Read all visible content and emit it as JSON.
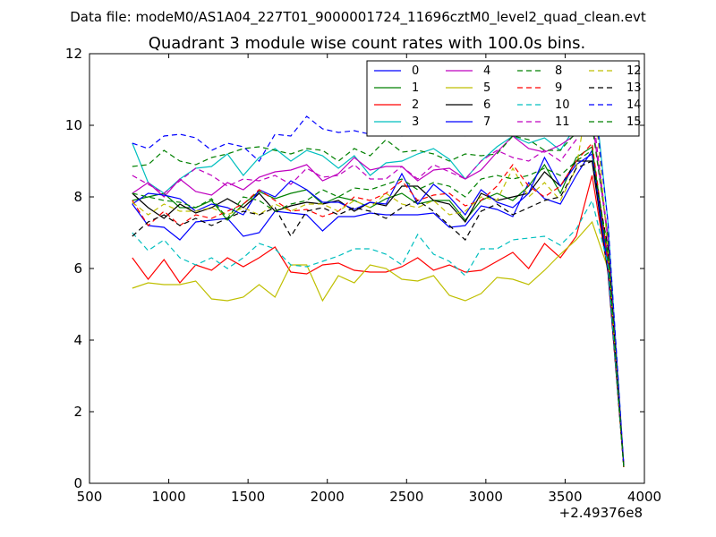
{
  "supertitle": "Data file: modeM0/AS1A04_227T01_9000001724_11696cztM0_level2_quad_clean.evt",
  "chart_data": {
    "type": "line",
    "title": "Quadrant 3 module wise count rates with 100.0s bins.",
    "xlabel": "",
    "ylabel": "",
    "xlim": [
      500,
      4000
    ],
    "ylim": [
      0,
      12
    ],
    "x_offset_label": "+2.49376e8",
    "xticks": [
      500,
      1000,
      1500,
      2000,
      2500,
      3000,
      3500,
      4000
    ],
    "yticks": [
      0,
      2,
      4,
      6,
      8,
      10,
      12
    ],
    "grid": false,
    "legend_position": "top-right",
    "x": [
      770,
      870,
      970,
      1070,
      1170,
      1270,
      1370,
      1470,
      1570,
      1670,
      1770,
      1870,
      1970,
      2070,
      2170,
      2270,
      2370,
      2470,
      2570,
      2670,
      2770,
      2870,
      2970,
      3070,
      3170,
      3270,
      3370,
      3470,
      3570,
      3670,
      3770,
      3870
    ],
    "series": [
      {
        "name": "0",
        "color": "#0000ff",
        "dash": "solid",
        "values": [
          7.8,
          7.2,
          7.15,
          6.8,
          7.3,
          7.35,
          7.4,
          6.9,
          7.0,
          7.6,
          7.55,
          7.5,
          7.05,
          7.45,
          7.45,
          7.55,
          7.5,
          7.5,
          7.5,
          7.55,
          7.15,
          7.2,
          7.75,
          7.65,
          7.45,
          8.4,
          7.95,
          7.8,
          8.6,
          9.3,
          6.3,
          0.5
        ]
      },
      {
        "name": "1",
        "color": "#008000",
        "dash": "solid",
        "values": [
          7.9,
          8.0,
          8.1,
          7.7,
          7.7,
          7.9,
          7.35,
          7.8,
          8.15,
          7.95,
          8.1,
          8.2,
          7.8,
          8.0,
          7.9,
          7.7,
          7.95,
          8.1,
          7.8,
          7.9,
          7.9,
          7.35,
          7.9,
          8.1,
          7.9,
          8.3,
          8.9,
          8.1,
          9.1,
          9.4,
          6.1,
          0.45
        ]
      },
      {
        "name": "2",
        "color": "#ff0000",
        "dash": "solid",
        "values": [
          6.3,
          5.7,
          6.25,
          5.6,
          6.1,
          5.95,
          6.3,
          6.05,
          6.3,
          6.6,
          5.9,
          5.85,
          6.1,
          6.15,
          5.95,
          5.9,
          5.9,
          6.05,
          6.3,
          5.95,
          6.1,
          5.9,
          5.95,
          6.2,
          6.45,
          6.0,
          6.7,
          6.3,
          6.9,
          8.6,
          5.9,
          0.5
        ]
      },
      {
        "name": "3",
        "color": "#00bfbf",
        "dash": "solid",
        "values": [
          9.5,
          8.4,
          8.1,
          8.5,
          8.8,
          8.85,
          9.2,
          8.6,
          9.1,
          9.35,
          9.0,
          9.3,
          9.15,
          8.8,
          9.15,
          8.6,
          8.95,
          9.0,
          9.2,
          9.35,
          9.05,
          8.5,
          9.0,
          9.4,
          9.7,
          9.5,
          9.65,
          9.3,
          10.0,
          11.6,
          7.3,
          0.5
        ]
      },
      {
        "name": "4",
        "color": "#bf00bf",
        "dash": "solid",
        "values": [
          8.1,
          8.4,
          8.0,
          8.5,
          8.15,
          8.05,
          8.4,
          8.2,
          8.55,
          8.7,
          8.75,
          8.9,
          8.45,
          8.65,
          9.1,
          8.75,
          8.85,
          8.85,
          8.45,
          8.75,
          8.8,
          8.5,
          8.75,
          9.25,
          9.7,
          9.35,
          9.25,
          9.45,
          9.75,
          10.2,
          6.8,
          0.5
        ]
      },
      {
        "name": "5",
        "color": "#bfbf00",
        "dash": "solid",
        "values": [
          5.45,
          5.6,
          5.55,
          5.55,
          5.65,
          5.15,
          5.1,
          5.2,
          5.55,
          5.2,
          6.1,
          6.1,
          5.1,
          5.8,
          5.6,
          6.1,
          6.0,
          5.7,
          5.65,
          5.8,
          5.25,
          5.1,
          5.3,
          5.75,
          5.7,
          5.55,
          5.95,
          6.4,
          6.8,
          7.3,
          6.0,
          0.45
        ]
      },
      {
        "name": "6",
        "color": "#000000",
        "dash": "solid",
        "values": [
          8.1,
          7.7,
          7.4,
          7.8,
          7.55,
          7.7,
          7.95,
          7.7,
          8.1,
          7.6,
          7.75,
          7.85,
          7.8,
          7.9,
          7.6,
          7.85,
          7.75,
          8.3,
          8.3,
          7.9,
          7.8,
          7.3,
          8.1,
          7.9,
          8.0,
          8.1,
          8.7,
          8.3,
          9.0,
          9.0,
          5.9,
          0.45
        ]
      },
      {
        "name": "7",
        "color": "#0000ff",
        "dash": "solid",
        "values": [
          7.8,
          8.1,
          8.05,
          7.95,
          7.6,
          7.8,
          7.7,
          7.5,
          8.2,
          8.0,
          8.45,
          8.2,
          7.85,
          7.85,
          7.65,
          7.85,
          7.8,
          8.65,
          7.8,
          8.35,
          8.0,
          7.5,
          8.2,
          7.85,
          7.7,
          8.1,
          9.1,
          8.3,
          8.9,
          9.2,
          6.0,
          0.5
        ]
      },
      {
        "name": "8",
        "color": "#008000",
        "dash": "dashed",
        "values": [
          8.85,
          8.9,
          9.3,
          9.0,
          8.9,
          9.1,
          9.2,
          9.35,
          9.4,
          9.3,
          9.2,
          9.35,
          9.3,
          9.0,
          9.35,
          9.15,
          9.6,
          9.25,
          9.3,
          9.2,
          9.0,
          9.2,
          9.15,
          9.2,
          9.7,
          9.6,
          9.3,
          9.3,
          9.8,
          10.0,
          6.9,
          0.45
        ]
      },
      {
        "name": "9",
        "color": "#ff0000",
        "dash": "dashed",
        "values": [
          7.9,
          7.2,
          7.6,
          7.2,
          7.5,
          7.4,
          7.6,
          7.8,
          8.2,
          7.9,
          7.6,
          7.65,
          7.45,
          7.6,
          8.0,
          7.9,
          8.1,
          8.45,
          7.9,
          8.05,
          8.1,
          7.75,
          7.9,
          8.3,
          8.9,
          8.3,
          8.0,
          8.3,
          9.0,
          9.5,
          6.2,
          0.45
        ]
      },
      {
        "name": "10",
        "color": "#00bfbf",
        "dash": "dashed",
        "values": [
          7.0,
          6.5,
          6.8,
          6.3,
          6.1,
          6.3,
          6.0,
          6.3,
          6.7,
          6.55,
          6.1,
          6.05,
          6.2,
          6.35,
          6.55,
          6.55,
          6.4,
          6.1,
          6.95,
          6.4,
          6.2,
          5.8,
          6.55,
          6.55,
          6.8,
          6.85,
          6.9,
          6.65,
          7.1,
          7.9,
          6.1,
          0.45
        ]
      },
      {
        "name": "11",
        "color": "#bf00bf",
        "dash": "dashed",
        "values": [
          8.6,
          8.35,
          8.1,
          8.45,
          8.8,
          8.6,
          8.3,
          8.5,
          8.45,
          8.6,
          8.35,
          8.8,
          8.55,
          8.6,
          8.9,
          8.5,
          8.5,
          8.85,
          8.5,
          8.9,
          8.7,
          8.5,
          9.0,
          9.3,
          9.1,
          9.0,
          9.3,
          9.0,
          9.6,
          10.5,
          6.9,
          0.5
        ]
      },
      {
        "name": "12",
        "color": "#bfbf00",
        "dash": "dashed",
        "values": [
          7.85,
          7.5,
          7.8,
          7.6,
          7.6,
          7.7,
          7.5,
          7.7,
          7.5,
          7.8,
          7.6,
          7.8,
          7.8,
          7.6,
          7.9,
          7.7,
          8.1,
          7.8,
          7.7,
          7.9,
          7.5,
          7.6,
          8.0,
          7.9,
          8.8,
          8.0,
          8.4,
          7.9,
          8.8,
          11.5,
          6.5,
          0.5
        ]
      },
      {
        "name": "13",
        "color": "#000000",
        "dash": "dashed",
        "values": [
          6.9,
          7.3,
          7.5,
          7.2,
          7.4,
          7.2,
          7.4,
          7.6,
          7.5,
          7.7,
          6.9,
          7.6,
          7.7,
          7.5,
          7.7,
          7.6,
          7.4,
          7.7,
          7.9,
          7.6,
          7.2,
          6.8,
          7.6,
          7.8,
          7.5,
          7.7,
          7.9,
          8.0,
          8.8,
          9.0,
          6.6,
          0.45
        ]
      },
      {
        "name": "14",
        "color": "#0000ff",
        "dash": "dashed",
        "values": [
          9.5,
          9.35,
          9.7,
          9.75,
          9.65,
          9.3,
          9.5,
          9.4,
          9.0,
          9.75,
          9.7,
          10.25,
          9.9,
          9.8,
          9.85,
          9.75,
          10.0,
          9.7,
          10.1,
          9.95,
          9.8,
          9.7,
          9.85,
          9.9,
          10.0,
          9.95,
          10.35,
          10.3,
          10.8,
          11.3,
          7.3,
          0.5
        ]
      },
      {
        "name": "15",
        "color": "#008000",
        "dash": "dashed",
        "values": [
          8.1,
          8.0,
          7.9,
          7.85,
          7.7,
          7.95,
          7.4,
          8.0,
          7.9,
          7.6,
          7.8,
          7.9,
          8.2,
          8.0,
          8.25,
          8.2,
          8.35,
          8.5,
          8.2,
          8.4,
          8.3,
          8.0,
          8.5,
          8.6,
          8.5,
          8.6,
          8.8,
          8.6,
          9.0,
          9.3,
          6.4,
          0.45
        ]
      }
    ]
  }
}
